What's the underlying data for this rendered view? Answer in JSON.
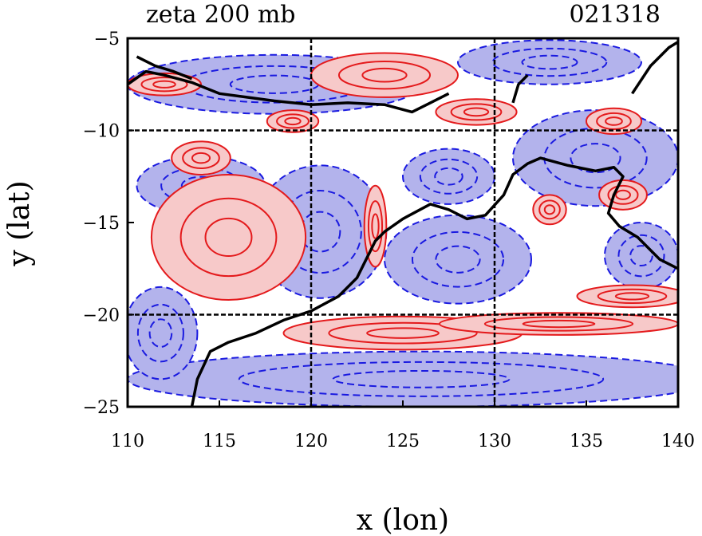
{
  "chart_data": {
    "type": "contour",
    "title": "zeta 200 mb",
    "subtitle": "021318",
    "xlabel": "x (lon)",
    "ylabel": "y (lat)",
    "xlim": [
      110,
      140
    ],
    "ylim": [
      -25,
      -5
    ],
    "xticks": [
      110,
      115,
      120,
      125,
      130,
      135,
      140
    ],
    "yticks": [
      -25,
      -20,
      -15,
      -10,
      -5
    ],
    "ytick_labels": [
      "−25",
      "−20",
      "−15",
      "−10",
      "−5"
    ],
    "gridlines_x": [
      120,
      130
    ],
    "gridlines_y": [
      -20,
      -10
    ],
    "colors": {
      "positive": "#e41a1c",
      "positive_fill": "#f7c9c9",
      "negative": "#1a1ae0",
      "negative_fill": "#b3b3ec",
      "coastline": "#000000"
    },
    "positive_regions": [
      {
        "cx": 115.5,
        "cy": -15.8,
        "rx": 4.2,
        "ry": 3.4
      },
      {
        "cx": 114.0,
        "cy": -11.5,
        "rx": 1.6,
        "ry": 0.9
      },
      {
        "cx": 123.5,
        "cy": -15.2,
        "rx": 0.6,
        "ry": 2.2
      },
      {
        "cx": 125.0,
        "cy": -21.0,
        "rx": 6.5,
        "ry": 0.9
      },
      {
        "cx": 133.5,
        "cy": -20.5,
        "rx": 6.5,
        "ry": 0.6
      },
      {
        "cx": 137.5,
        "cy": -19.0,
        "rx": 3.0,
        "ry": 0.6
      },
      {
        "cx": 124.0,
        "cy": -7.0,
        "rx": 4.0,
        "ry": 1.2
      },
      {
        "cx": 112.0,
        "cy": -7.5,
        "rx": 2.0,
        "ry": 0.6
      },
      {
        "cx": 129.0,
        "cy": -9.0,
        "rx": 2.2,
        "ry": 0.7
      },
      {
        "cx": 133.0,
        "cy": -14.3,
        "rx": 0.9,
        "ry": 0.8
      },
      {
        "cx": 136.5,
        "cy": -9.5,
        "rx": 1.5,
        "ry": 0.7
      },
      {
        "cx": 119.0,
        "cy": -9.5,
        "rx": 1.4,
        "ry": 0.6
      },
      {
        "cx": 137.0,
        "cy": -13.5,
        "rx": 1.3,
        "ry": 0.8
      }
    ],
    "negative_regions": [
      {
        "cx": 120.5,
        "cy": -15.5,
        "rx": 3.6,
        "ry": 3.6
      },
      {
        "cx": 128.0,
        "cy": -17.0,
        "rx": 4.0,
        "ry": 2.4
      },
      {
        "cx": 114.0,
        "cy": -13.0,
        "rx": 3.5,
        "ry": 1.6
      },
      {
        "cx": 126.0,
        "cy": -23.5,
        "rx": 16.0,
        "ry": 1.5
      },
      {
        "cx": 135.5,
        "cy": -11.5,
        "rx": 4.5,
        "ry": 2.6
      },
      {
        "cx": 118.0,
        "cy": -7.5,
        "rx": 8.0,
        "ry": 1.6
      },
      {
        "cx": 133.0,
        "cy": -6.3,
        "rx": 5.0,
        "ry": 1.2
      },
      {
        "cx": 111.8,
        "cy": -21.0,
        "rx": 2.0,
        "ry": 2.5
      },
      {
        "cx": 138.0,
        "cy": -16.8,
        "rx": 2.0,
        "ry": 1.8
      },
      {
        "cx": 127.5,
        "cy": -12.5,
        "rx": 2.5,
        "ry": 1.5
      }
    ],
    "coastlines": [
      [
        [
          110.0,
          -7.5
        ],
        [
          111.0,
          -6.8
        ],
        [
          112.0,
          -7.0
        ],
        [
          113.5,
          -7.4
        ],
        [
          115.0,
          -8.0
        ],
        [
          116.5,
          -8.2
        ],
        [
          118.0,
          -8.4
        ],
        [
          120.0,
          -8.6
        ],
        [
          122.0,
          -8.5
        ],
        [
          124.0,
          -8.6
        ],
        [
          125.5,
          -9.0
        ],
        [
          126.5,
          -8.5
        ],
        [
          127.5,
          -8.0
        ]
      ],
      [
        [
          110.5,
          -6.0
        ],
        [
          111.5,
          -6.5
        ],
        [
          112.5,
          -6.8
        ],
        [
          113.5,
          -7.2
        ]
      ],
      [
        [
          113.5,
          -25.0
        ],
        [
          113.8,
          -23.5
        ],
        [
          114.5,
          -22.0
        ],
        [
          115.5,
          -21.5
        ],
        [
          117.0,
          -21.0
        ],
        [
          118.5,
          -20.3
        ],
        [
          120.0,
          -19.8
        ],
        [
          121.5,
          -19.0
        ],
        [
          122.5,
          -18.0
        ],
        [
          123.0,
          -17.0
        ],
        [
          123.5,
          -16.0
        ],
        [
          124.0,
          -15.5
        ],
        [
          125.0,
          -14.8
        ],
        [
          126.5,
          -14.0
        ],
        [
          127.5,
          -14.3
        ],
        [
          128.5,
          -14.8
        ],
        [
          129.5,
          -14.6
        ],
        [
          130.5,
          -13.5
        ],
        [
          131.0,
          -12.4
        ],
        [
          131.8,
          -11.8
        ],
        [
          132.5,
          -11.5
        ],
        [
          134.0,
          -11.9
        ],
        [
          135.5,
          -12.2
        ],
        [
          136.5,
          -12.0
        ],
        [
          137.0,
          -12.5
        ],
        [
          136.5,
          -13.5
        ],
        [
          136.2,
          -14.5
        ],
        [
          136.8,
          -15.2
        ],
        [
          137.8,
          -15.8
        ],
        [
          139.0,
          -17.0
        ],
        [
          140.0,
          -17.5
        ]
      ],
      [
        [
          137.5,
          -8.0
        ],
        [
          138.5,
          -6.5
        ],
        [
          139.5,
          -5.5
        ],
        [
          140.0,
          -5.2
        ]
      ],
      [
        [
          131.0,
          -8.5
        ],
        [
          131.3,
          -7.5
        ],
        [
          131.8,
          -7.0
        ]
      ]
    ]
  }
}
